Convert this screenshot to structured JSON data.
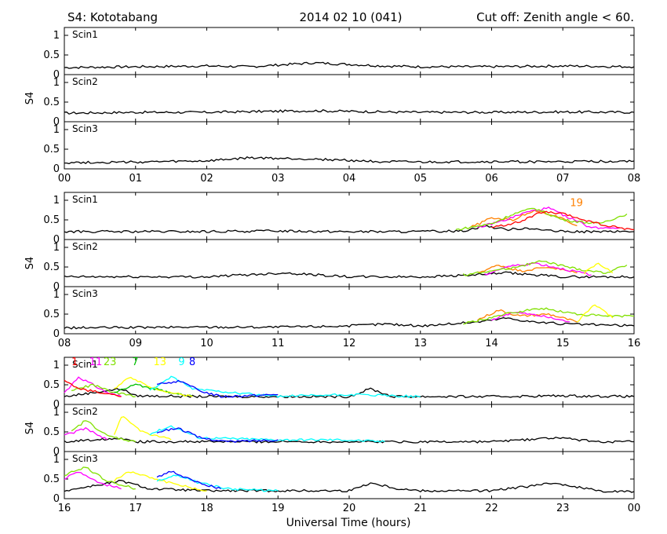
{
  "header": {
    "station": "S4: Kototabang",
    "date": "2014 02 10 (041)",
    "cutoff": "Cut off: Zenith angle < 60."
  },
  "axis": {
    "ylabel": "S4",
    "xlabel": "Universal Time (hours)",
    "yticks": [
      "1",
      "0.5",
      "0"
    ],
    "ylim": [
      0,
      1.2
    ]
  },
  "chart_data": [
    {
      "type": "line",
      "xlim": [
        0,
        8
      ],
      "xticks": [
        "00",
        "01",
        "02",
        "03",
        "04",
        "05",
        "06",
        "07",
        "08"
      ],
      "panels": [
        {
          "name": "Scin1",
          "series": [
            {
              "prn": "",
              "color": "#000000",
              "x": [
                0,
                1,
                2,
                2.6,
                3.5,
                4.5,
                5,
                6,
                7,
                8
              ],
              "values": [
                0.18,
                0.2,
                0.22,
                0.2,
                0.3,
                0.22,
                0.2,
                0.2,
                0.22,
                0.2
              ]
            }
          ]
        },
        {
          "name": "Scin2",
          "series": [
            {
              "prn": "",
              "color": "#000000",
              "x": [
                0,
                1,
                2,
                2.7,
                3.5,
                4.5,
                5,
                6,
                7,
                8
              ],
              "values": [
                0.22,
                0.24,
                0.24,
                0.26,
                0.28,
                0.25,
                0.24,
                0.24,
                0.25,
                0.24
              ]
            }
          ]
        },
        {
          "name": "Scin3",
          "series": [
            {
              "prn": "",
              "color": "#000000",
              "x": [
                0,
                1,
                2,
                2.6,
                3.5,
                4.5,
                5,
                6,
                7,
                8
              ],
              "values": [
                0.16,
                0.17,
                0.2,
                0.28,
                0.25,
                0.18,
                0.17,
                0.18,
                0.18,
                0.2
              ]
            }
          ]
        }
      ],
      "prn_labels": []
    },
    {
      "type": "line",
      "xlim": [
        8,
        16
      ],
      "xticks": [
        "08",
        "09",
        "10",
        "11",
        "12",
        "13",
        "14",
        "15",
        "16"
      ],
      "panels": [
        {
          "name": "Scin1",
          "series": [
            {
              "prn": "",
              "color": "#000000",
              "x": [
                8,
                10,
                11,
                12,
                13,
                13.6,
                13.9,
                14.2,
                14.5,
                14.8,
                15,
                16
              ],
              "values": [
                0.2,
                0.2,
                0.22,
                0.2,
                0.2,
                0.22,
                0.35,
                0.25,
                0.3,
                0.22,
                0.2,
                0.2
              ]
            },
            {
              "prn": "19",
              "color": "#ff8000",
              "x": [
                13.7,
                14,
                14.3,
                14.6,
                14.9,
                15.2
              ],
              "values": [
                0.3,
                0.55,
                0.5,
                0.75,
                0.6,
                0.35
              ]
            },
            {
              "prn": "",
              "color": "#ff00ff",
              "x": [
                13.8,
                14.2,
                14.5,
                14.8,
                15.1,
                15.4,
                15.8
              ],
              "values": [
                0.3,
                0.5,
                0.7,
                0.8,
                0.55,
                0.3,
                0.3
              ]
            },
            {
              "prn": "",
              "color": "#80e000",
              "x": [
                13.5,
                14,
                14.3,
                14.6,
                15,
                15.5,
                15.9
              ],
              "values": [
                0.25,
                0.4,
                0.65,
                0.8,
                0.5,
                0.4,
                0.65
              ]
            },
            {
              "prn": "",
              "color": "#ff0000",
              "x": [
                14,
                14.4,
                14.7,
                15,
                15.3,
                15.6,
                16
              ],
              "values": [
                0.3,
                0.45,
                0.7,
                0.65,
                0.5,
                0.35,
                0.25
              ]
            }
          ]
        },
        {
          "name": "Scin2",
          "series": [
            {
              "prn": "",
              "color": "#000000",
              "x": [
                8,
                10,
                11.1,
                12,
                13,
                13.8,
                14.2,
                14.6,
                15,
                16
              ],
              "values": [
                0.25,
                0.25,
                0.35,
                0.25,
                0.25,
                0.3,
                0.35,
                0.3,
                0.25,
                0.25
              ]
            },
            {
              "prn": "",
              "color": "#ff8000",
              "x": [
                13.8,
                14.1,
                14.4,
                14.8,
                15.2
              ],
              "values": [
                0.35,
                0.55,
                0.4,
                0.5,
                0.35
              ]
            },
            {
              "prn": "",
              "color": "#ff00ff",
              "x": [
                13.9,
                14.2,
                14.6,
                15,
                15.4
              ],
              "values": [
                0.3,
                0.5,
                0.6,
                0.45,
                0.3
              ]
            },
            {
              "prn": "",
              "color": "#80e000",
              "x": [
                13.6,
                14.2,
                14.7,
                15.2,
                15.6,
                15.9
              ],
              "values": [
                0.3,
                0.45,
                0.65,
                0.45,
                0.35,
                0.55
              ]
            },
            {
              "prn": "",
              "color": "#ffff00",
              "x": [
                15.3,
                15.5,
                15.7
              ],
              "values": [
                0.35,
                0.6,
                0.35
              ]
            }
          ]
        },
        {
          "name": "Scin3",
          "series": [
            {
              "prn": "",
              "color": "#000000",
              "x": [
                8,
                10,
                11,
                12,
                12.5,
                13,
                13.8,
                14.2,
                14.6,
                15,
                16
              ],
              "values": [
                0.15,
                0.17,
                0.17,
                0.2,
                0.25,
                0.2,
                0.3,
                0.4,
                0.3,
                0.25,
                0.2
              ]
            },
            {
              "prn": "",
              "color": "#ff8000",
              "x": [
                13.8,
                14.1,
                14.4,
                14.8,
                15.2
              ],
              "values": [
                0.35,
                0.6,
                0.45,
                0.5,
                0.3
              ]
            },
            {
              "prn": "",
              "color": "#ff00ff",
              "x": [
                14,
                14.3,
                14.7,
                15.1
              ],
              "values": [
                0.35,
                0.55,
                0.45,
                0.3
              ]
            },
            {
              "prn": "",
              "color": "#80e000",
              "x": [
                13.6,
                14.2,
                14.7,
                15.2,
                15.6,
                16
              ],
              "values": [
                0.25,
                0.5,
                0.65,
                0.5,
                0.45,
                0.45
              ]
            },
            {
              "prn": "",
              "color": "#ffff00",
              "x": [
                15.2,
                15.45,
                15.7
              ],
              "values": [
                0.3,
                0.75,
                0.4
              ]
            }
          ]
        }
      ],
      "prn_labels": [
        {
          "text": "19",
          "color": "#ff8000",
          "x": 15.1,
          "y": 0.85
        }
      ]
    },
    {
      "type": "line",
      "xlim": [
        16,
        24
      ],
      "xticks": [
        "16",
        "17",
        "18",
        "19",
        "20",
        "21",
        "22",
        "23",
        "00"
      ],
      "panels": [
        {
          "name": "Scin1",
          "series": [
            {
              "prn": "",
              "color": "#000000",
              "x": [
                16,
                16.8,
                17,
                18,
                19,
                20,
                20.3,
                20.6,
                21,
                22,
                23,
                24
              ],
              "values": [
                0.2,
                0.4,
                0.22,
                0.2,
                0.2,
                0.2,
                0.4,
                0.2,
                0.2,
                0.2,
                0.22,
                0.2
              ]
            },
            {
              "prn": "11",
              "color": "#ff00ff",
              "x": [
                16,
                16.2,
                16.4,
                16.6,
                16.8
              ],
              "values": [
                0.3,
                0.7,
                0.5,
                0.3,
                0.2
              ]
            },
            {
              "prn": "23",
              "color": "#80e000",
              "x": [
                16.1,
                16.4,
                16.7,
                17
              ],
              "values": [
                0.35,
                0.5,
                0.3,
                0.2
              ]
            },
            {
              "prn": "7",
              "color": "#00c000",
              "x": [
                16.7,
                17,
                17.4,
                17.8
              ],
              "values": [
                0.3,
                0.5,
                0.35,
                0.2
              ]
            },
            {
              "prn": "13",
              "color": "#ffff00",
              "x": [
                16.7,
                16.9,
                17.2,
                17.5,
                17.8
              ],
              "values": [
                0.4,
                0.7,
                0.45,
                0.3,
                0.2
              ]
            },
            {
              "prn": "9",
              "color": "#00ffff",
              "x": [
                17.2,
                17.5,
                17.8,
                18.1,
                19,
                20,
                21
              ],
              "values": [
                0.35,
                0.7,
                0.4,
                0.35,
                0.2,
                0.25,
                0.2
              ]
            },
            {
              "prn": "8",
              "color": "#0000ff",
              "x": [
                17.3,
                17.6,
                17.9,
                18.2,
                19
              ],
              "values": [
                0.5,
                0.6,
                0.35,
                0.2,
                0.25
              ]
            },
            {
              "prn": "1",
              "color": "#ff0000",
              "x": [
                16,
                16.2,
                16.5,
                16.8
              ],
              "values": [
                0.6,
                0.4,
                0.3,
                0.2
              ]
            }
          ]
        },
        {
          "name": "Scin2",
          "series": [
            {
              "prn": "",
              "color": "#000000",
              "x": [
                16,
                16.8,
                17,
                18,
                19,
                20,
                21,
                22,
                22.9,
                23.5,
                24
              ],
              "values": [
                0.25,
                0.35,
                0.25,
                0.25,
                0.25,
                0.25,
                0.25,
                0.25,
                0.35,
                0.25,
                0.25
              ]
            },
            {
              "prn": "",
              "color": "#ff00ff",
              "x": [
                16,
                16.3,
                16.6
              ],
              "values": [
                0.4,
                0.6,
                0.3
              ]
            },
            {
              "prn": "",
              "color": "#80e000",
              "x": [
                16.1,
                16.3,
                16.6,
                17
              ],
              "values": [
                0.5,
                0.8,
                0.4,
                0.25
              ]
            },
            {
              "prn": "",
              "color": "#ffff00",
              "x": [
                16.7,
                16.8,
                17.1,
                17.5
              ],
              "values": [
                0.4,
                0.9,
                0.5,
                0.3
              ]
            },
            {
              "prn": "",
              "color": "#00ffff",
              "x": [
                17.2,
                17.5,
                17.9,
                19,
                19.9,
                20.5
              ],
              "values": [
                0.45,
                0.65,
                0.35,
                0.3,
                0.3,
                0.25
              ]
            },
            {
              "prn": "",
              "color": "#0000ff",
              "x": [
                17.3,
                17.6,
                17.9,
                18.3,
                19
              ],
              "values": [
                0.5,
                0.6,
                0.35,
                0.25,
                0.3
              ]
            }
          ]
        },
        {
          "name": "Scin3",
          "series": [
            {
              "prn": "",
              "color": "#000000",
              "x": [
                16,
                16.8,
                17.2,
                18,
                19,
                20,
                20.3,
                20.7,
                21,
                22,
                22.9,
                23.5,
                24
              ],
              "values": [
                0.2,
                0.45,
                0.25,
                0.2,
                0.2,
                0.2,
                0.4,
                0.25,
                0.2,
                0.2,
                0.4,
                0.2,
                0.18
              ]
            },
            {
              "prn": "",
              "color": "#ff00ff",
              "x": [
                16,
                16.2,
                16.5,
                16.8
              ],
              "values": [
                0.5,
                0.7,
                0.4,
                0.25
              ]
            },
            {
              "prn": "",
              "color": "#80e000",
              "x": [
                16,
                16.3,
                16.6,
                17
              ],
              "values": [
                0.6,
                0.8,
                0.45,
                0.25
              ]
            },
            {
              "prn": "",
              "color": "#ffff00",
              "x": [
                16.7,
                16.9,
                17.2,
                17.6,
                18
              ],
              "values": [
                0.45,
                0.7,
                0.55,
                0.35,
                0.2
              ]
            },
            {
              "prn": "",
              "color": "#00ffff",
              "x": [
                17.3,
                17.6,
                17.9,
                18.3,
                19
              ],
              "values": [
                0.45,
                0.6,
                0.4,
                0.25,
                0.2
              ]
            },
            {
              "prn": "",
              "color": "#0000ff",
              "x": [
                17.3,
                17.5,
                17.8,
                18.2
              ],
              "values": [
                0.55,
                0.7,
                0.45,
                0.25
              ]
            }
          ]
        }
      ],
      "prn_labels": [
        {
          "text": "1",
          "color": "#ff0000",
          "x": 16.1,
          "y": 1.0
        },
        {
          "text": "11",
          "color": "#ff00ff",
          "x": 16.35,
          "y": 1.0
        },
        {
          "text": "23",
          "color": "#80e000",
          "x": 16.55,
          "y": 1.0
        },
        {
          "text": "7",
          "color": "#00c000",
          "x": 16.95,
          "y": 1.0
        },
        {
          "text": "13",
          "color": "#ffff00",
          "x": 17.25,
          "y": 1.0
        },
        {
          "text": "9",
          "color": "#00ffff",
          "x": 17.6,
          "y": 1.0
        },
        {
          "text": "8",
          "color": "#0000ff",
          "x": 17.75,
          "y": 1.0
        }
      ]
    }
  ]
}
